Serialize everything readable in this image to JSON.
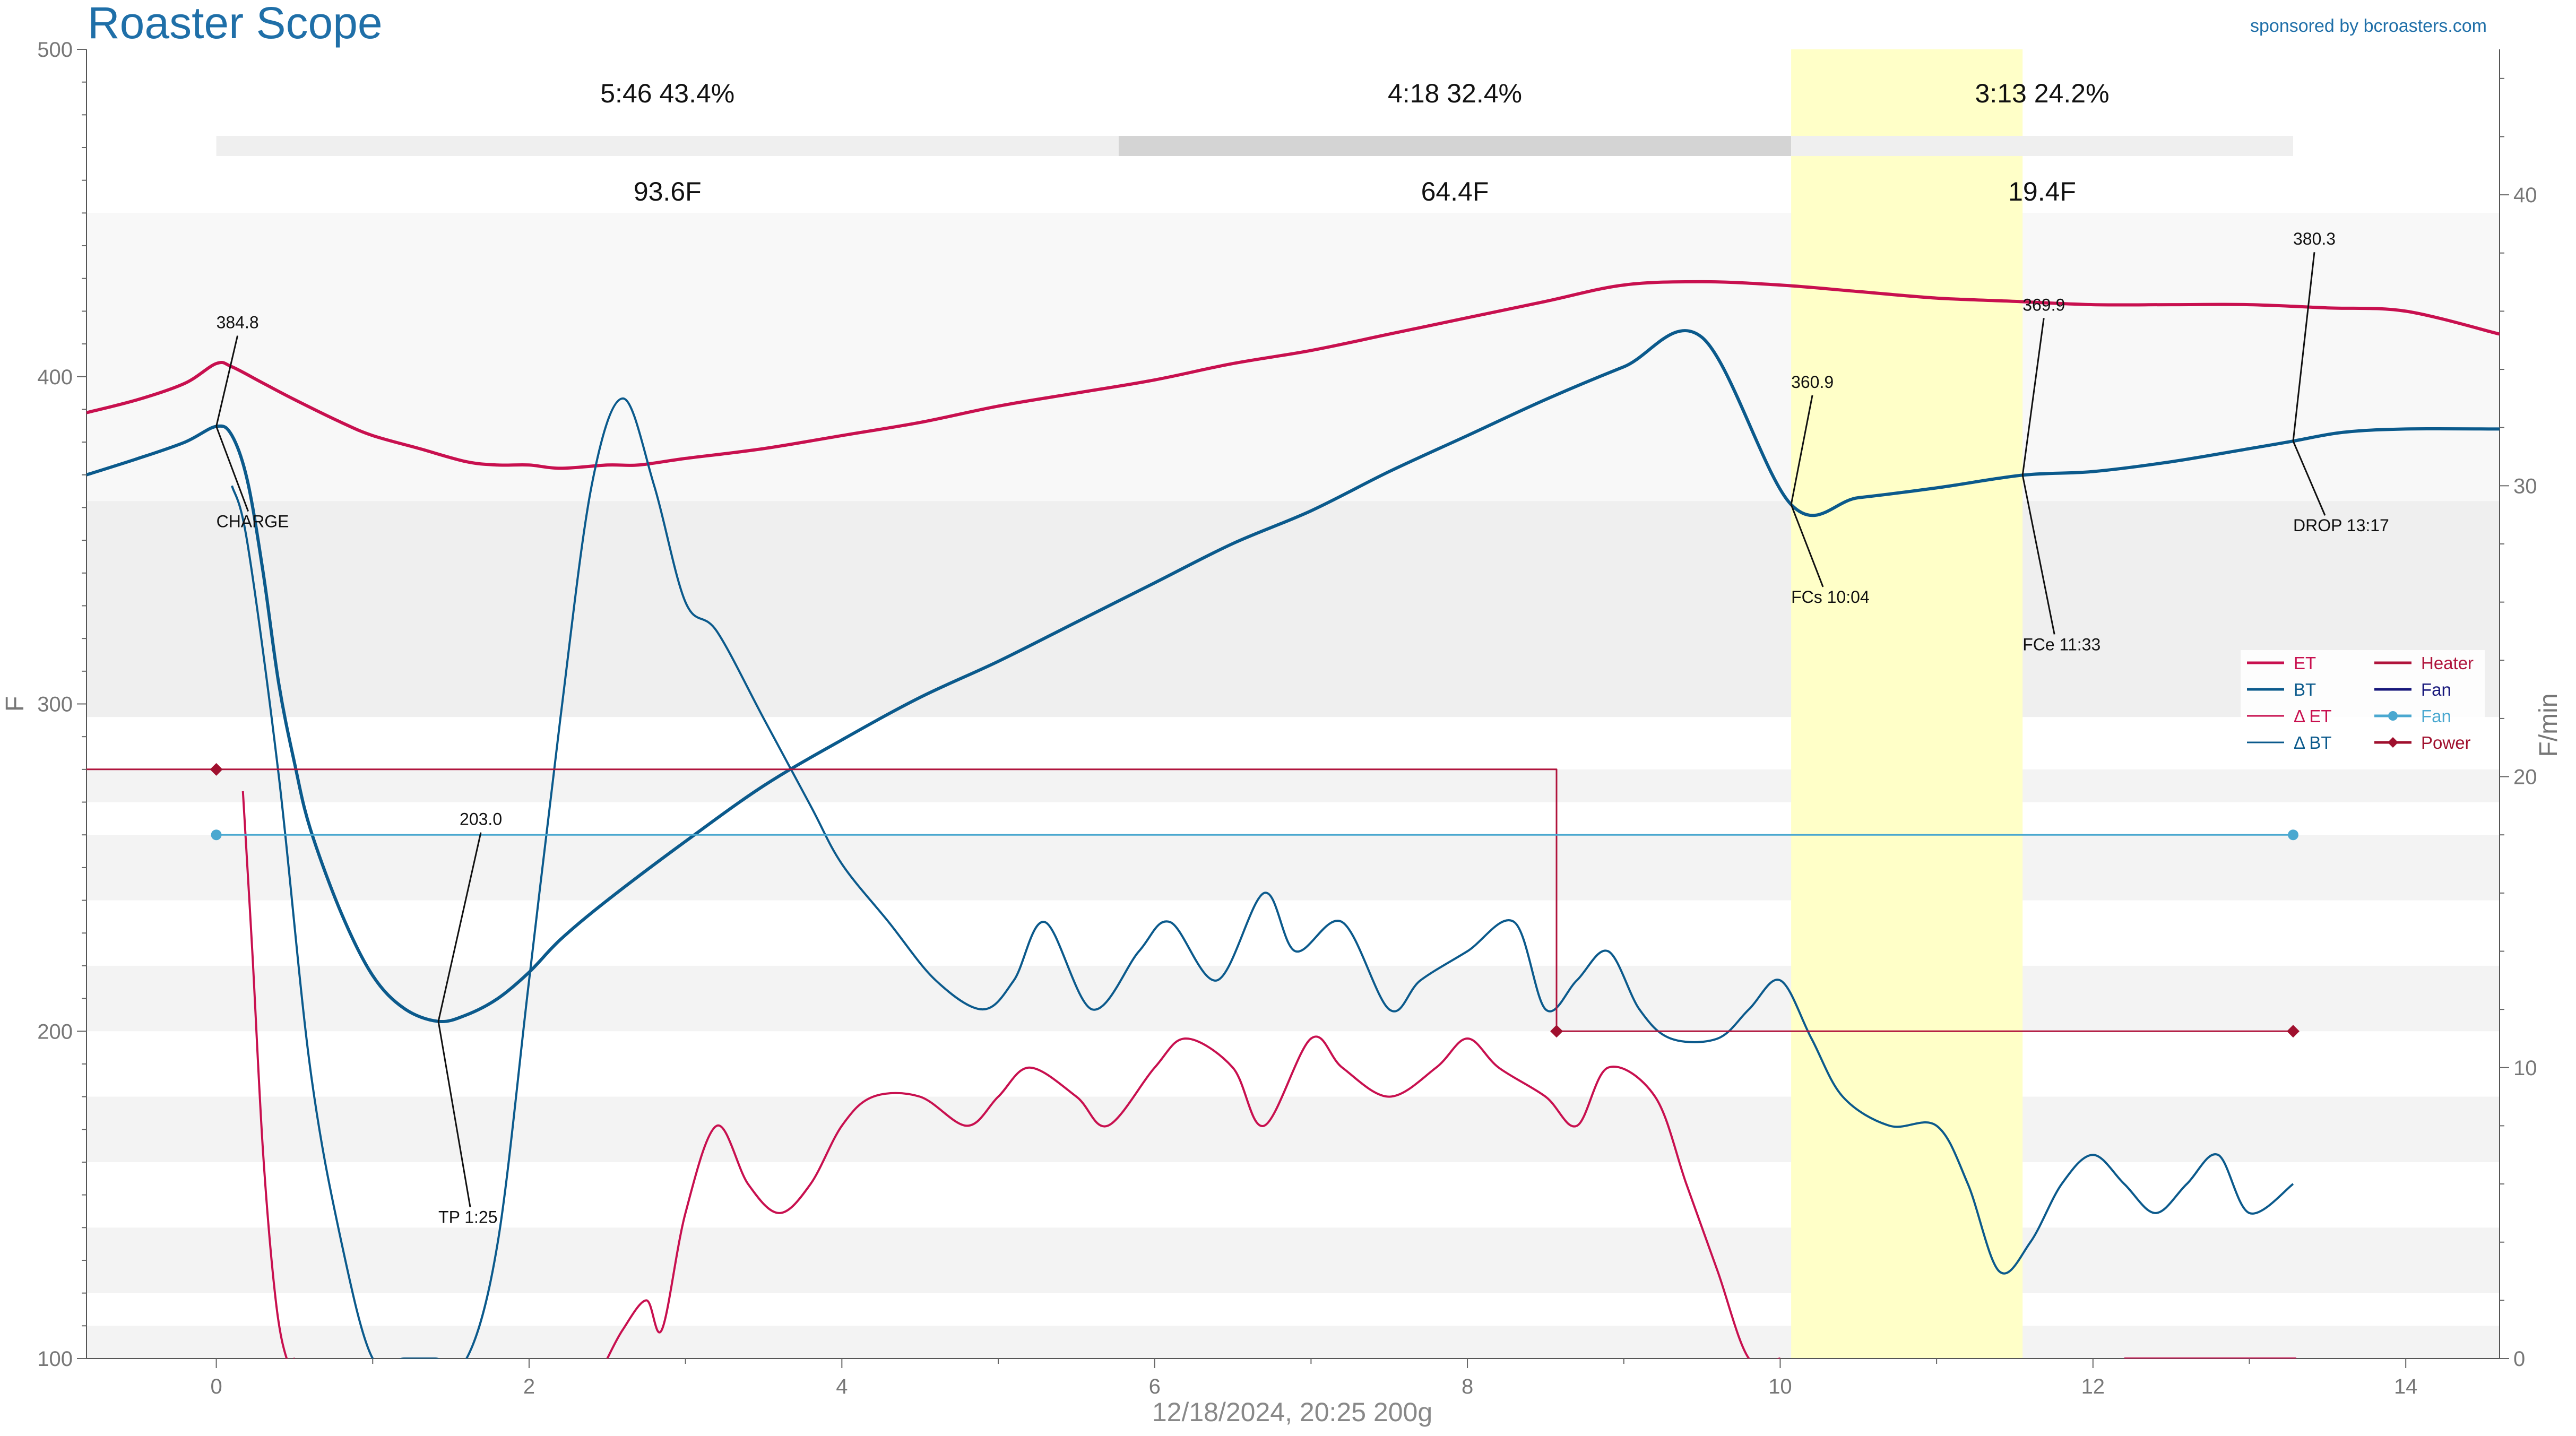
{
  "title": "Roaster Scope",
  "sponsor": "sponsored by bcroasters.com",
  "footer": "12/18/2024, 20:25   200g",
  "colors": {
    "et": "#c8104f",
    "bt": "#0b5a8c",
    "delta_et": "#c8104f",
    "delta_bt": "#0b5a8c",
    "heater": "#b0143c",
    "fan_curve": "#16167a",
    "fan_marker": "#4aa8d0",
    "power": "#a0102e",
    "fc_band": "#ffffc8",
    "title": "#1f6fa8"
  },
  "phases": [
    {
      "label": "5:46  43.4%",
      "delta": "93.6F",
      "start": 0,
      "end": 5.77
    },
    {
      "label": "4:18  32.4%",
      "delta": "64.4F",
      "start": 5.77,
      "end": 10.07
    },
    {
      "label": "3:13  24.2%",
      "delta": "19.4F",
      "start": 10.07,
      "end": 13.28
    }
  ],
  "chart_data": {
    "type": "line",
    "xlabel": "",
    "ylabel": "F",
    "y2label": "F/min",
    "xlim": [
      -0.83,
      14.6
    ],
    "ylim": [
      100,
      500
    ],
    "y2lim": [
      0,
      45
    ],
    "xticks": [
      0,
      2,
      4,
      6,
      8,
      10,
      12,
      14
    ],
    "yticks": [
      100,
      200,
      300,
      400,
      500
    ],
    "y2ticks": [
      0,
      10,
      20,
      30,
      40
    ],
    "fc_band": [
      10.07,
      11.55
    ],
    "legend_position": "right",
    "legend": [
      {
        "label": "ET",
        "color": "#c8104f"
      },
      {
        "label": "BT",
        "color": "#0b5a8c"
      },
      {
        "label": "Δ ET",
        "color": "#c8104f"
      },
      {
        "label": "Δ BT",
        "color": "#0b5a8c"
      },
      {
        "label": "Heater",
        "color": "#b0143c"
      },
      {
        "label": "Fan",
        "color": "#16167a"
      },
      {
        "label": "Fan",
        "color": "#4aa8d0"
      },
      {
        "label": "Power",
        "color": "#a0102e"
      }
    ],
    "series": [
      {
        "name": "ET",
        "axis": "left",
        "x": [
          -0.83,
          -0.5,
          -0.2,
          0,
          0.1,
          0.3,
          0.5,
          0.8,
          1,
          1.3,
          1.6,
          1.8,
          2,
          2.2,
          2.5,
          2.7,
          3,
          3.5,
          4,
          4.5,
          5,
          5.5,
          6,
          6.5,
          7,
          7.5,
          8,
          8.5,
          9,
          9.5,
          10,
          10.5,
          11,
          11.5,
          12,
          12.5,
          13,
          13.5,
          14,
          14.6
        ],
        "y": [
          389,
          393,
          398,
          404,
          403,
          398,
          393,
          386,
          382,
          378,
          374,
          373,
          373,
          372,
          373,
          373,
          375,
          378,
          382,
          386,
          391,
          395,
          399,
          404,
          408,
          413,
          418,
          423,
          428,
          429,
          428,
          426,
          424,
          423,
          422,
          422,
          422,
          421,
          420,
          413
        ]
      },
      {
        "name": "BT",
        "axis": "left",
        "x": [
          -0.83,
          -0.5,
          -0.2,
          0,
          0.1,
          0.2,
          0.3,
          0.4,
          0.5,
          0.6,
          0.8,
          1,
          1.2,
          1.42,
          1.6,
          1.8,
          2,
          2.2,
          2.5,
          3,
          3.5,
          4,
          4.5,
          5,
          5.5,
          6,
          6.5,
          7,
          7.5,
          8,
          8.5,
          9,
          9.5,
          10.07,
          10.5,
          11,
          11.55,
          12,
          12.5,
          13,
          13.28,
          13.6,
          14,
          14.6
        ],
        "y": [
          370,
          375,
          380,
          384.8,
          382,
          368,
          340,
          306,
          282,
          262,
          236,
          217,
          207,
          203,
          205,
          210,
          218,
          228,
          240,
          258,
          275,
          289,
          302,
          313,
          325,
          337,
          349,
          359,
          371,
          382,
          393,
          403,
          412,
          360.9,
          363,
          366,
          369.9,
          371,
          374,
          378,
          380.3,
          383,
          384,
          384
        ]
      },
      {
        "name": "Δ ET",
        "axis": "right",
        "x": [
          0.17,
          0.23,
          0.3,
          0.38,
          0.45,
          0.5
        ],
        "y": [
          19.5,
          14,
          7,
          2,
          0,
          0
        ]
      },
      {
        "name": "Δ ET",
        "axis": "right",
        "x": [
          2.5,
          2.6,
          2.75,
          2.85,
          3,
          3.2,
          3.4,
          3.6,
          3.8,
          4,
          4.2,
          4.5,
          4.8,
          5,
          5.2,
          5.5,
          5.7,
          6,
          6.2,
          6.5,
          6.7,
          7,
          7.2,
          7.5,
          7.8,
          8,
          8.2,
          8.5,
          8.7,
          8.9,
          9.2,
          9.4,
          9.6,
          9.8,
          10
        ],
        "y": [
          0,
          1,
          2,
          1,
          5,
          8,
          6,
          5,
          6,
          8,
          9,
          9,
          8,
          9,
          10,
          9,
          8,
          10,
          11,
          10,
          8,
          11,
          10,
          9,
          10,
          11,
          10,
          9,
          8,
          10,
          9,
          6,
          3,
          0,
          0
        ]
      },
      {
        "name": "Δ ET",
        "axis": "right",
        "x": [
          12.2,
          13,
          13.3
        ],
        "y": [
          0,
          0,
          0
        ]
      },
      {
        "name": "Δ BT",
        "axis": "right",
        "x": [
          0.1,
          0.2,
          0.4,
          0.6,
          0.8,
          1.0,
          1.2,
          1.4,
          1.6,
          1.8,
          2.0,
          2.2,
          2.4,
          2.6,
          2.8,
          3.0,
          3.2,
          3.5,
          3.8,
          4.0,
          4.3,
          4.6,
          4.9,
          5.1,
          5.3,
          5.6,
          5.9,
          6.1,
          6.4,
          6.7,
          6.9,
          7.2,
          7.5,
          7.7,
          8.0,
          8.3,
          8.5,
          8.7,
          8.9,
          9.1,
          9.3,
          9.6,
          9.8,
          10.0,
          10.2,
          10.4,
          10.7,
          11.0,
          11.2,
          11.4,
          11.6,
          11.8,
          12.0,
          12.2,
          12.4,
          12.6,
          12.8,
          13.0,
          13.28
        ],
        "y": [
          30,
          28,
          20,
          10,
          4,
          0,
          0,
          0,
          0,
          4,
          13,
          22,
          30,
          33,
          30,
          26,
          25,
          22,
          19,
          17,
          15,
          13,
          12,
          13,
          15,
          12,
          14,
          15,
          13,
          16,
          14,
          15,
          12,
          13,
          14,
          15,
          12,
          13,
          14,
          12,
          11,
          11,
          12,
          13,
          11,
          9,
          8,
          8,
          6,
          3,
          4,
          6,
          7,
          6,
          5,
          6,
          7,
          5,
          6
        ]
      },
      {
        "name": "Heater",
        "axis": "left",
        "x": [
          -0.83,
          8.57,
          8.57,
          13.28
        ],
        "y": [
          280,
          280,
          200,
          200
        ]
      },
      {
        "name": "Fan",
        "axis": "left",
        "x": [
          0,
          13.28
        ],
        "y": [
          260,
          260
        ]
      }
    ],
    "power_markers": {
      "x": [
        0,
        8.57,
        13.28
      ],
      "y": [
        280,
        200,
        200
      ]
    },
    "fan_markers": {
      "x": [
        0,
        13.28
      ],
      "y": [
        260,
        260
      ]
    },
    "annotations": [
      {
        "label": "384.8",
        "event": "CHARGE",
        "x": 0,
        "y": 384.8
      },
      {
        "label": "203.0",
        "event": "TP 1:25",
        "x": 1.42,
        "y": 203
      },
      {
        "label": "360.9",
        "event": "FCs 10:04",
        "x": 10.07,
        "y": 360.9
      },
      {
        "label": "369.9",
        "event": "FCe 11:33",
        "x": 11.55,
        "y": 369.9
      },
      {
        "label": "380.3",
        "event": "DROP 13:17",
        "x": 13.28,
        "y": 380.3
      }
    ]
  }
}
